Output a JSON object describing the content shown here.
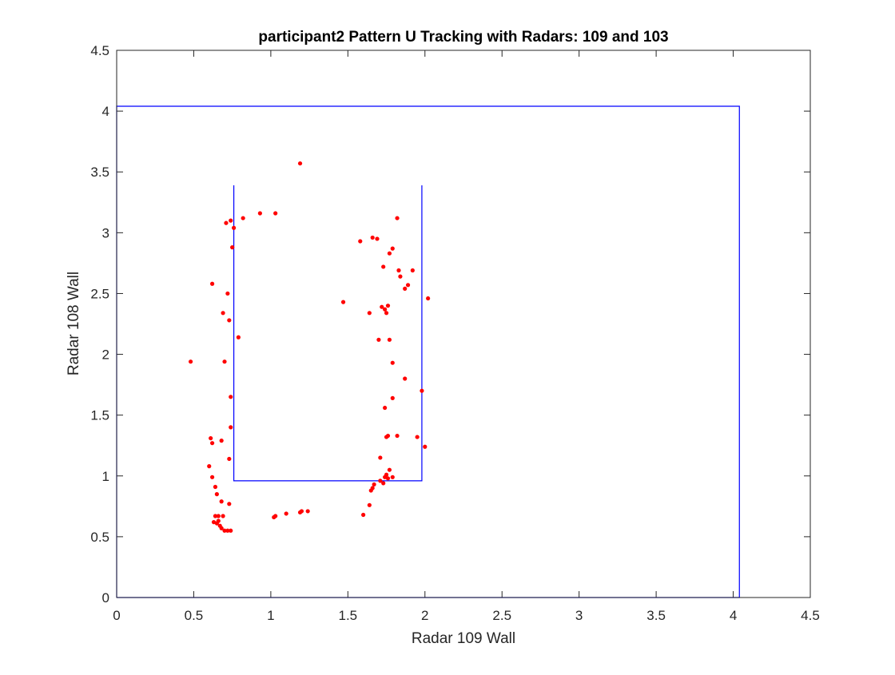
{
  "chart_data": {
    "type": "scatter",
    "title": "participant2 Pattern U Tracking with Radars: 109 and 103",
    "xlabel": "Radar 109 Wall",
    "ylabel": "Radar 108 Wall",
    "xlim": [
      0,
      4.5
    ],
    "ylim": [
      0,
      4.5
    ],
    "xticks": [
      "0",
      "0.5",
      "1",
      "1.5",
      "2",
      "2.5",
      "3",
      "3.5",
      "4",
      "4.5"
    ],
    "yticks": [
      "0",
      "0.5",
      "1",
      "1.5",
      "2",
      "2.5",
      "3",
      "3.5",
      "4",
      "4.5"
    ],
    "grid": false,
    "legend": "none",
    "outer_boundary": {
      "color": "#0000ff",
      "x": [
        0,
        4.04,
        4.04,
        0,
        0
      ],
      "y": [
        0,
        0,
        4.04,
        4.04,
        0
      ]
    },
    "u_pattern": {
      "color": "#0000ff",
      "x": [
        0.76,
        0.76,
        1.98,
        1.98
      ],
      "y": [
        3.39,
        0.96,
        0.96,
        3.39
      ]
    },
    "points_color": "#ff0000",
    "points": [
      [
        1.19,
        3.57
      ],
      [
        0.93,
        3.16
      ],
      [
        1.03,
        3.16
      ],
      [
        0.82,
        3.12
      ],
      [
        0.74,
        3.1
      ],
      [
        0.71,
        3.08
      ],
      [
        0.76,
        3.04
      ],
      [
        0.75,
        2.88
      ],
      [
        0.62,
        2.58
      ],
      [
        0.72,
        2.5
      ],
      [
        0.69,
        2.34
      ],
      [
        0.73,
        2.28
      ],
      [
        0.79,
        2.14
      ],
      [
        0.48,
        1.94
      ],
      [
        0.7,
        1.94
      ],
      [
        0.74,
        1.65
      ],
      [
        0.74,
        1.4
      ],
      [
        0.61,
        1.31
      ],
      [
        0.68,
        1.29
      ],
      [
        0.62,
        1.27
      ],
      [
        0.73,
        1.14
      ],
      [
        0.6,
        1.08
      ],
      [
        0.62,
        0.99
      ],
      [
        0.64,
        0.91
      ],
      [
        0.65,
        0.85
      ],
      [
        0.68,
        0.79
      ],
      [
        0.73,
        0.77
      ],
      [
        0.64,
        0.67
      ],
      [
        0.66,
        0.67
      ],
      [
        0.69,
        0.67
      ],
      [
        0.63,
        0.62
      ],
      [
        0.65,
        0.61
      ],
      [
        0.66,
        0.63
      ],
      [
        0.67,
        0.59
      ],
      [
        0.68,
        0.57
      ],
      [
        0.7,
        0.55
      ],
      [
        0.72,
        0.55
      ],
      [
        0.74,
        0.55
      ],
      [
        1.02,
        0.66
      ],
      [
        1.03,
        0.67
      ],
      [
        1.1,
        0.69
      ],
      [
        1.19,
        0.7
      ],
      [
        1.2,
        0.71
      ],
      [
        1.24,
        0.71
      ],
      [
        1.6,
        0.68
      ],
      [
        1.64,
        0.76
      ],
      [
        1.65,
        0.88
      ],
      [
        1.66,
        0.9
      ],
      [
        1.67,
        0.93
      ],
      [
        1.71,
        0.96
      ],
      [
        1.73,
        0.94
      ],
      [
        1.74,
        0.99
      ],
      [
        1.75,
        1.01
      ],
      [
        1.77,
        1.05
      ],
      [
        1.76,
        0.98
      ],
      [
        1.79,
        0.99
      ],
      [
        1.71,
        1.15
      ],
      [
        1.75,
        1.32
      ],
      [
        1.76,
        1.33
      ],
      [
        1.82,
        1.33
      ],
      [
        1.95,
        1.32
      ],
      [
        2.0,
        1.24
      ],
      [
        1.74,
        1.56
      ],
      [
        1.79,
        1.64
      ],
      [
        1.98,
        1.7
      ],
      [
        1.87,
        1.8
      ],
      [
        1.79,
        1.93
      ],
      [
        1.7,
        2.12
      ],
      [
        1.77,
        2.12
      ],
      [
        1.75,
        2.34
      ],
      [
        1.64,
        2.34
      ],
      [
        1.72,
        2.39
      ],
      [
        1.74,
        2.37
      ],
      [
        1.76,
        2.4
      ],
      [
        1.47,
        2.43
      ],
      [
        2.02,
        2.46
      ],
      [
        1.87,
        2.54
      ],
      [
        1.89,
        2.57
      ],
      [
        1.84,
        2.64
      ],
      [
        1.83,
        2.69
      ],
      [
        1.92,
        2.69
      ],
      [
        1.73,
        2.72
      ],
      [
        1.77,
        2.83
      ],
      [
        1.79,
        2.87
      ],
      [
        1.58,
        2.93
      ],
      [
        1.66,
        2.96
      ],
      [
        1.69,
        2.95
      ],
      [
        1.82,
        3.12
      ]
    ]
  }
}
